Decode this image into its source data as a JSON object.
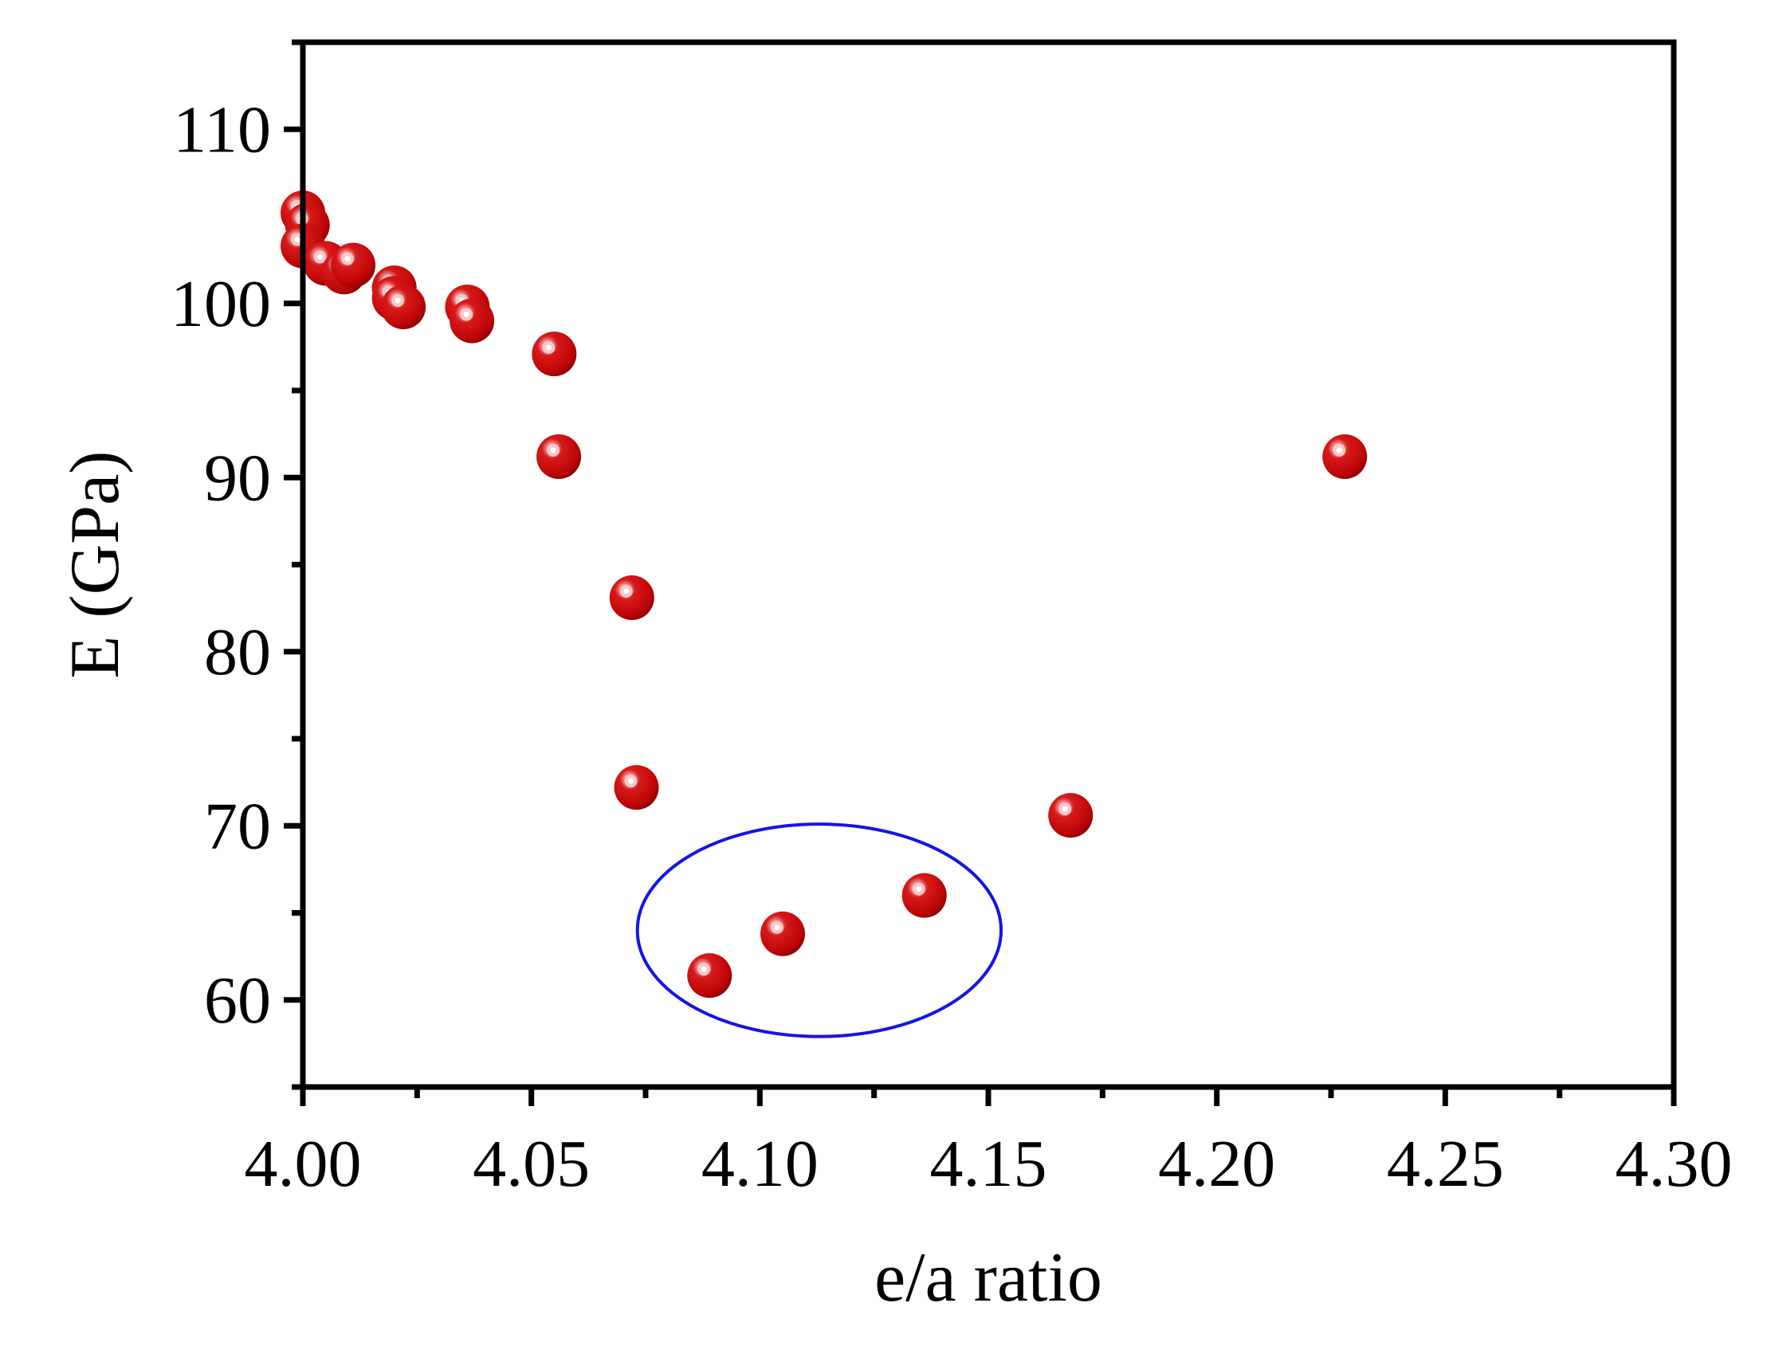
{
  "chart_data": {
    "type": "scatter",
    "title": "",
    "xlabel": "e/a ratio",
    "ylabel": "E (GPa)",
    "xlim": [
      4.0,
      4.3
    ],
    "ylim": [
      55,
      115
    ],
    "xticks": [
      4.0,
      4.05,
      4.1,
      4.15,
      4.2,
      4.25,
      4.3
    ],
    "xtick_labels": [
      "4.00",
      "4.05",
      "4.10",
      "4.15",
      "4.20",
      "4.25",
      "4.30"
    ],
    "yticks": [
      60,
      70,
      80,
      90,
      100,
      110
    ],
    "ytick_labels": [
      "60",
      "70",
      "80",
      "90",
      "100",
      "110"
    ],
    "grid": false,
    "legend": "none",
    "marker_color": "#c8060a",
    "highlight_color": "#1414e6",
    "points": [
      {
        "x": 4.0,
        "y": 105.2
      },
      {
        "x": 4.001,
        "y": 104.5
      },
      {
        "x": 4.0,
        "y": 103.3
      },
      {
        "x": 4.005,
        "y": 102.3
      },
      {
        "x": 4.009,
        "y": 101.8
      },
      {
        "x": 4.011,
        "y": 102.2
      },
      {
        "x": 4.02,
        "y": 100.9
      },
      {
        "x": 4.02,
        "y": 100.3
      },
      {
        "x": 4.022,
        "y": 99.8
      },
      {
        "x": 4.036,
        "y": 99.8
      },
      {
        "x": 4.037,
        "y": 99.0
      },
      {
        "x": 4.055,
        "y": 97.1
      },
      {
        "x": 4.056,
        "y": 91.2
      },
      {
        "x": 4.072,
        "y": 83.1
      },
      {
        "x": 4.073,
        "y": 72.2
      },
      {
        "x": 4.089,
        "y": 61.4
      },
      {
        "x": 4.105,
        "y": 63.8
      },
      {
        "x": 4.136,
        "y": 66.0
      },
      {
        "x": 4.168,
        "y": 70.6
      },
      {
        "x": 4.228,
        "y": 91.2
      }
    ],
    "highlight_ellipse": {
      "center_x": 4.113,
      "center_y": 64.0,
      "radius_x": 0.0398,
      "radius_y": 6.1
    }
  }
}
